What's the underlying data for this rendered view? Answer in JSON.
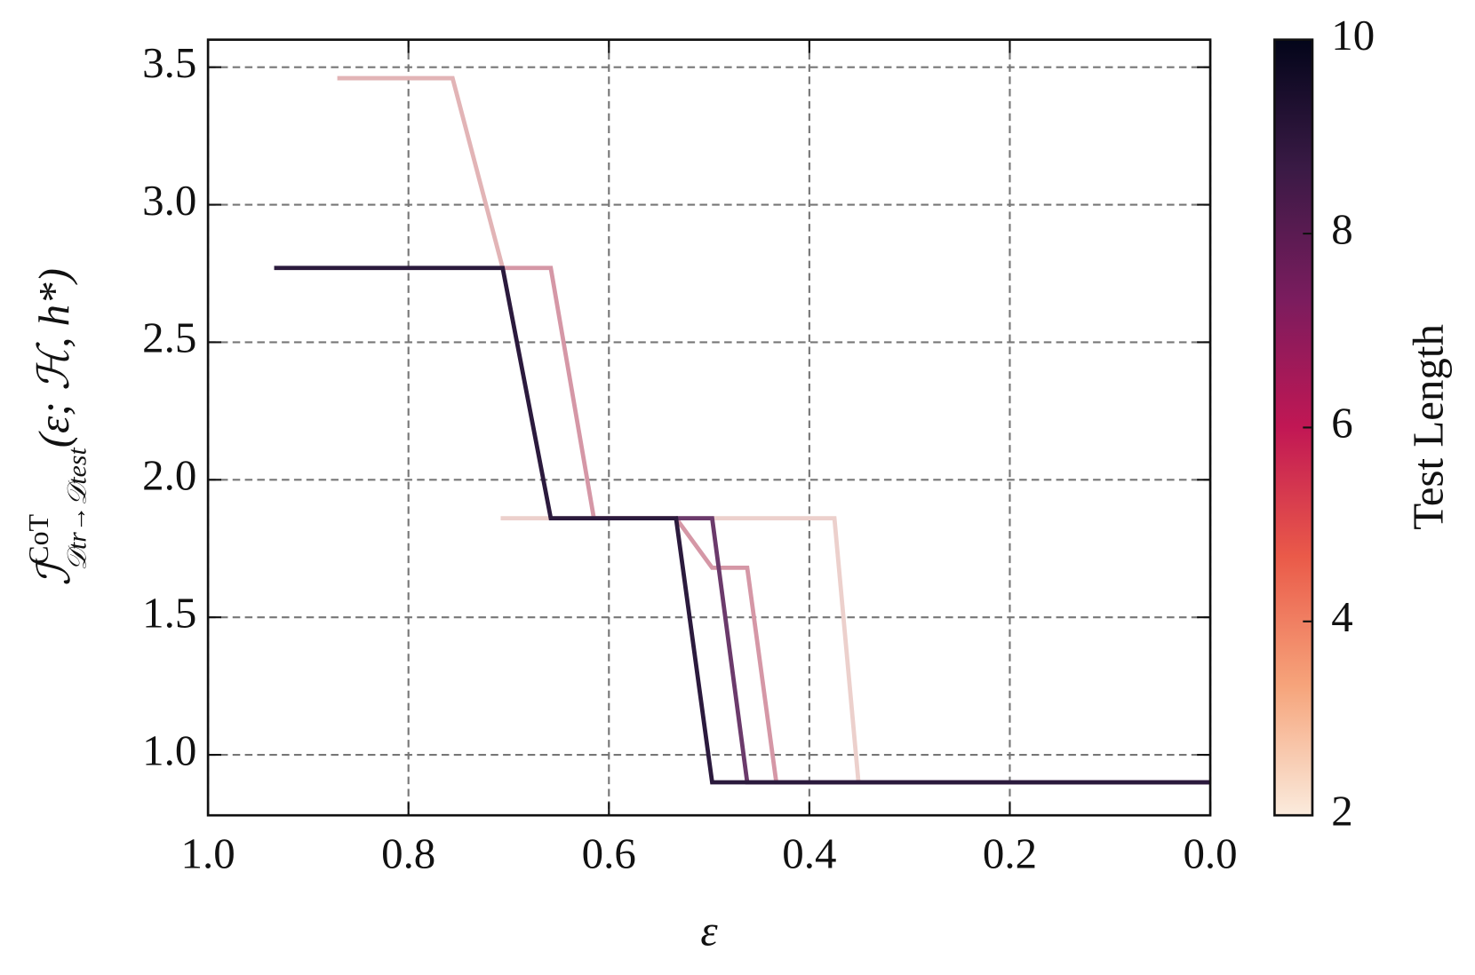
{
  "chart_data": {
    "type": "line",
    "x_label": "ε",
    "y_label": {
      "main": "ℐ",
      "sup": "CoT",
      "sub": "𝒟tr→𝒟test",
      "args": "(ε; ℋ, h*)"
    },
    "xlim": [
      1.0,
      0.0
    ],
    "xticks": [
      {
        "value": 1.0,
        "label": "1.0"
      },
      0.8,
      0.6,
      0.4,
      0.2,
      {
        "value": 0.0,
        "label": "0.0"
      }
    ],
    "ylim": [
      0.78,
      3.6
    ],
    "yticks": [
      {
        "value": 1.0,
        "label": "1.0"
      },
      1.5,
      {
        "value": 2.0,
        "label": "2.0"
      },
      2.5,
      {
        "value": 3.0,
        "label": "3.0"
      },
      3.5
    ],
    "grid": true,
    "series": [
      {
        "color": "#ecd0cc",
        "x": [
          0.708,
          0.375,
          0.351,
          0.0
        ],
        "values": [
          1.86,
          1.86,
          0.9,
          0.9
        ]
      },
      {
        "color": "#e2b4b6",
        "x": [
          0.871,
          0.756,
          0.706
        ],
        "values": [
          3.46,
          3.46,
          2.77
        ]
      },
      {
        "color": "#d597a6",
        "x": [
          0.706,
          0.658,
          0.615,
          0.533,
          0.497,
          0.462,
          0.433,
          0.0
        ],
        "values": [
          2.77,
          2.77,
          1.86,
          1.86,
          1.68,
          1.68,
          0.9,
          0.9
        ]
      },
      {
        "color": "#6b3a6b",
        "x": [
          0.533,
          0.497,
          0.462,
          0.0
        ],
        "values": [
          1.86,
          1.86,
          0.9,
          0.9
        ]
      },
      {
        "color": "#2b1a3d",
        "x": [
          0.934,
          0.706,
          0.658,
          0.533,
          0.497,
          0.0
        ],
        "values": [
          2.77,
          2.77,
          1.86,
          1.86,
          0.9,
          0.9
        ]
      }
    ],
    "colorbar": {
      "label": "Test Length",
      "lim": [
        2,
        10
      ],
      "ticks": [
        2,
        4,
        6,
        8,
        10
      ],
      "colors": [
        "#faebdd",
        "#f6a47b",
        "#ea5a49",
        "#c11754",
        "#7a1c5e",
        "#3a1a45",
        "#03051a"
      ]
    }
  }
}
